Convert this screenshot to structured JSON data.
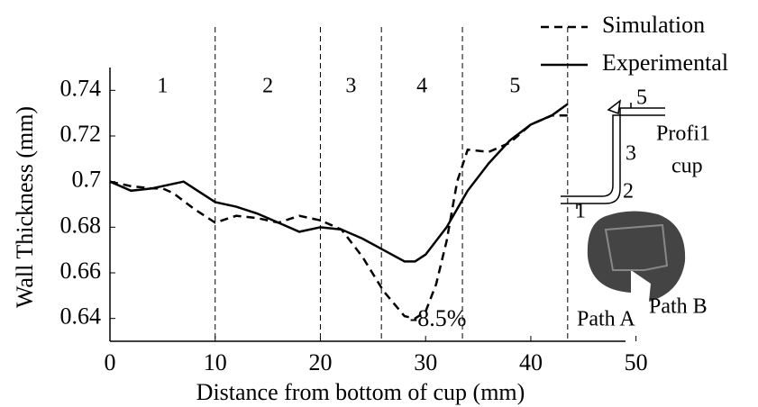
{
  "chart_data": {
    "type": "line",
    "x_label": "Distance from bottom of cup (mm)",
    "y_label": "Wall Thickness (mm)",
    "xlim": [
      0,
      49
    ],
    "xticks": [
      0,
      10,
      20,
      30,
      40,
      50
    ],
    "ylim": [
      0.63,
      0.75
    ],
    "yticks": [
      0.64,
      0.66,
      0.68,
      0.7,
      0.72,
      0.74
    ],
    "region_lines": [
      10,
      20,
      25.8,
      33.5,
      43.5
    ],
    "region_labels": [
      "1",
      "2",
      "3",
      "4",
      "5"
    ],
    "annotation": "-8.5%",
    "inset_labels": {
      "profile": "Profi1",
      "cup": "cup",
      "regions": [
        "1",
        "2",
        "3",
        "5"
      ],
      "path_a": "Path A",
      "path_b": "Path B"
    },
    "series": [
      {
        "name": "Simulation",
        "color": "#000000",
        "dash": true,
        "x": [
          0,
          2,
          4,
          5,
          6,
          8,
          10,
          12,
          14,
          16,
          18,
          20,
          22,
          24,
          26,
          28,
          29,
          30,
          31,
          32,
          33,
          34,
          36,
          38,
          40,
          42,
          43.5
        ],
        "values": [
          0.7,
          0.698,
          0.697,
          0.697,
          0.695,
          0.688,
          0.682,
          0.685,
          0.684,
          0.682,
          0.685,
          0.683,
          0.679,
          0.667,
          0.652,
          0.641,
          0.64,
          0.643,
          0.655,
          0.674,
          0.7,
          0.714,
          0.713,
          0.717,
          0.725,
          0.729,
          0.729
        ]
      },
      {
        "name": "Experimental",
        "color": "#000000",
        "dash": false,
        "x": [
          0,
          2,
          4,
          6,
          7,
          8,
          10,
          12,
          14,
          16,
          18,
          20,
          22,
          24,
          26,
          28,
          29,
          30,
          32,
          34,
          36,
          38,
          40,
          42,
          43.5
        ],
        "values": [
          0.7,
          0.696,
          0.697,
          0.699,
          0.7,
          0.697,
          0.691,
          0.689,
          0.686,
          0.682,
          0.678,
          0.68,
          0.679,
          0.675,
          0.67,
          0.665,
          0.665,
          0.668,
          0.68,
          0.696,
          0.708,
          0.718,
          0.725,
          0.729,
          0.734
        ]
      }
    ]
  }
}
